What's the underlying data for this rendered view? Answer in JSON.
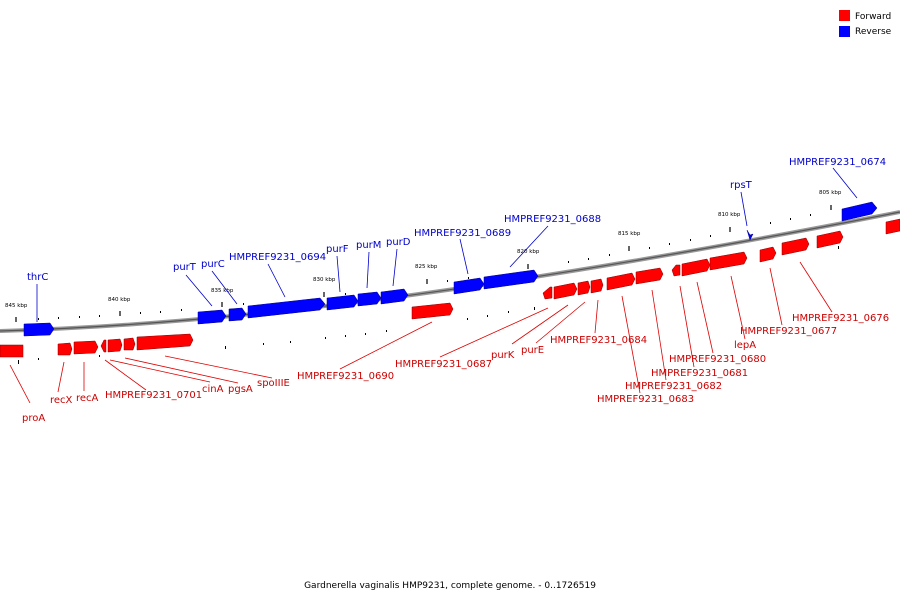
{
  "legend": {
    "forward_label": "Forward",
    "reverse_label": "Reverse",
    "forward_color": "#ff0000",
    "reverse_color": "#0000ff"
  },
  "caption": "Gardnerella vaginalis HMP9231, complete genome. - 0..1726519",
  "scale_labels": [
    "845 kbp",
    "840 kbp",
    "835 kbp",
    "830 kbp",
    "825 kbp",
    "820 kbp",
    "815 kbp",
    "810 kbp",
    "805 kbp"
  ],
  "forward_gene_labels": [
    "proA",
    "recX",
    "recA",
    "HMPREF9231_0701",
    "cinA",
    "pgsA",
    "spoIIIE",
    "HMPREF9231_0690",
    "HMPREF9231_0687",
    "purK",
    "purE",
    "HMPREF9231_0684",
    "HMPREF9231_0683",
    "HMPREF9231_0682",
    "HMPREF9231_0681",
    "HMPREF9231_0680",
    "lepA",
    "HMPREF9231_0677",
    "HMPREF9231_0676"
  ],
  "reverse_gene_labels": [
    "thrC",
    "purT",
    "purC",
    "HMPREF9231_0694",
    "purF",
    "purM",
    "purD",
    "HMPREF9231_0689",
    "HMPREF9231_0688",
    "rpsT",
    "HMPREF9231_0674"
  ]
}
